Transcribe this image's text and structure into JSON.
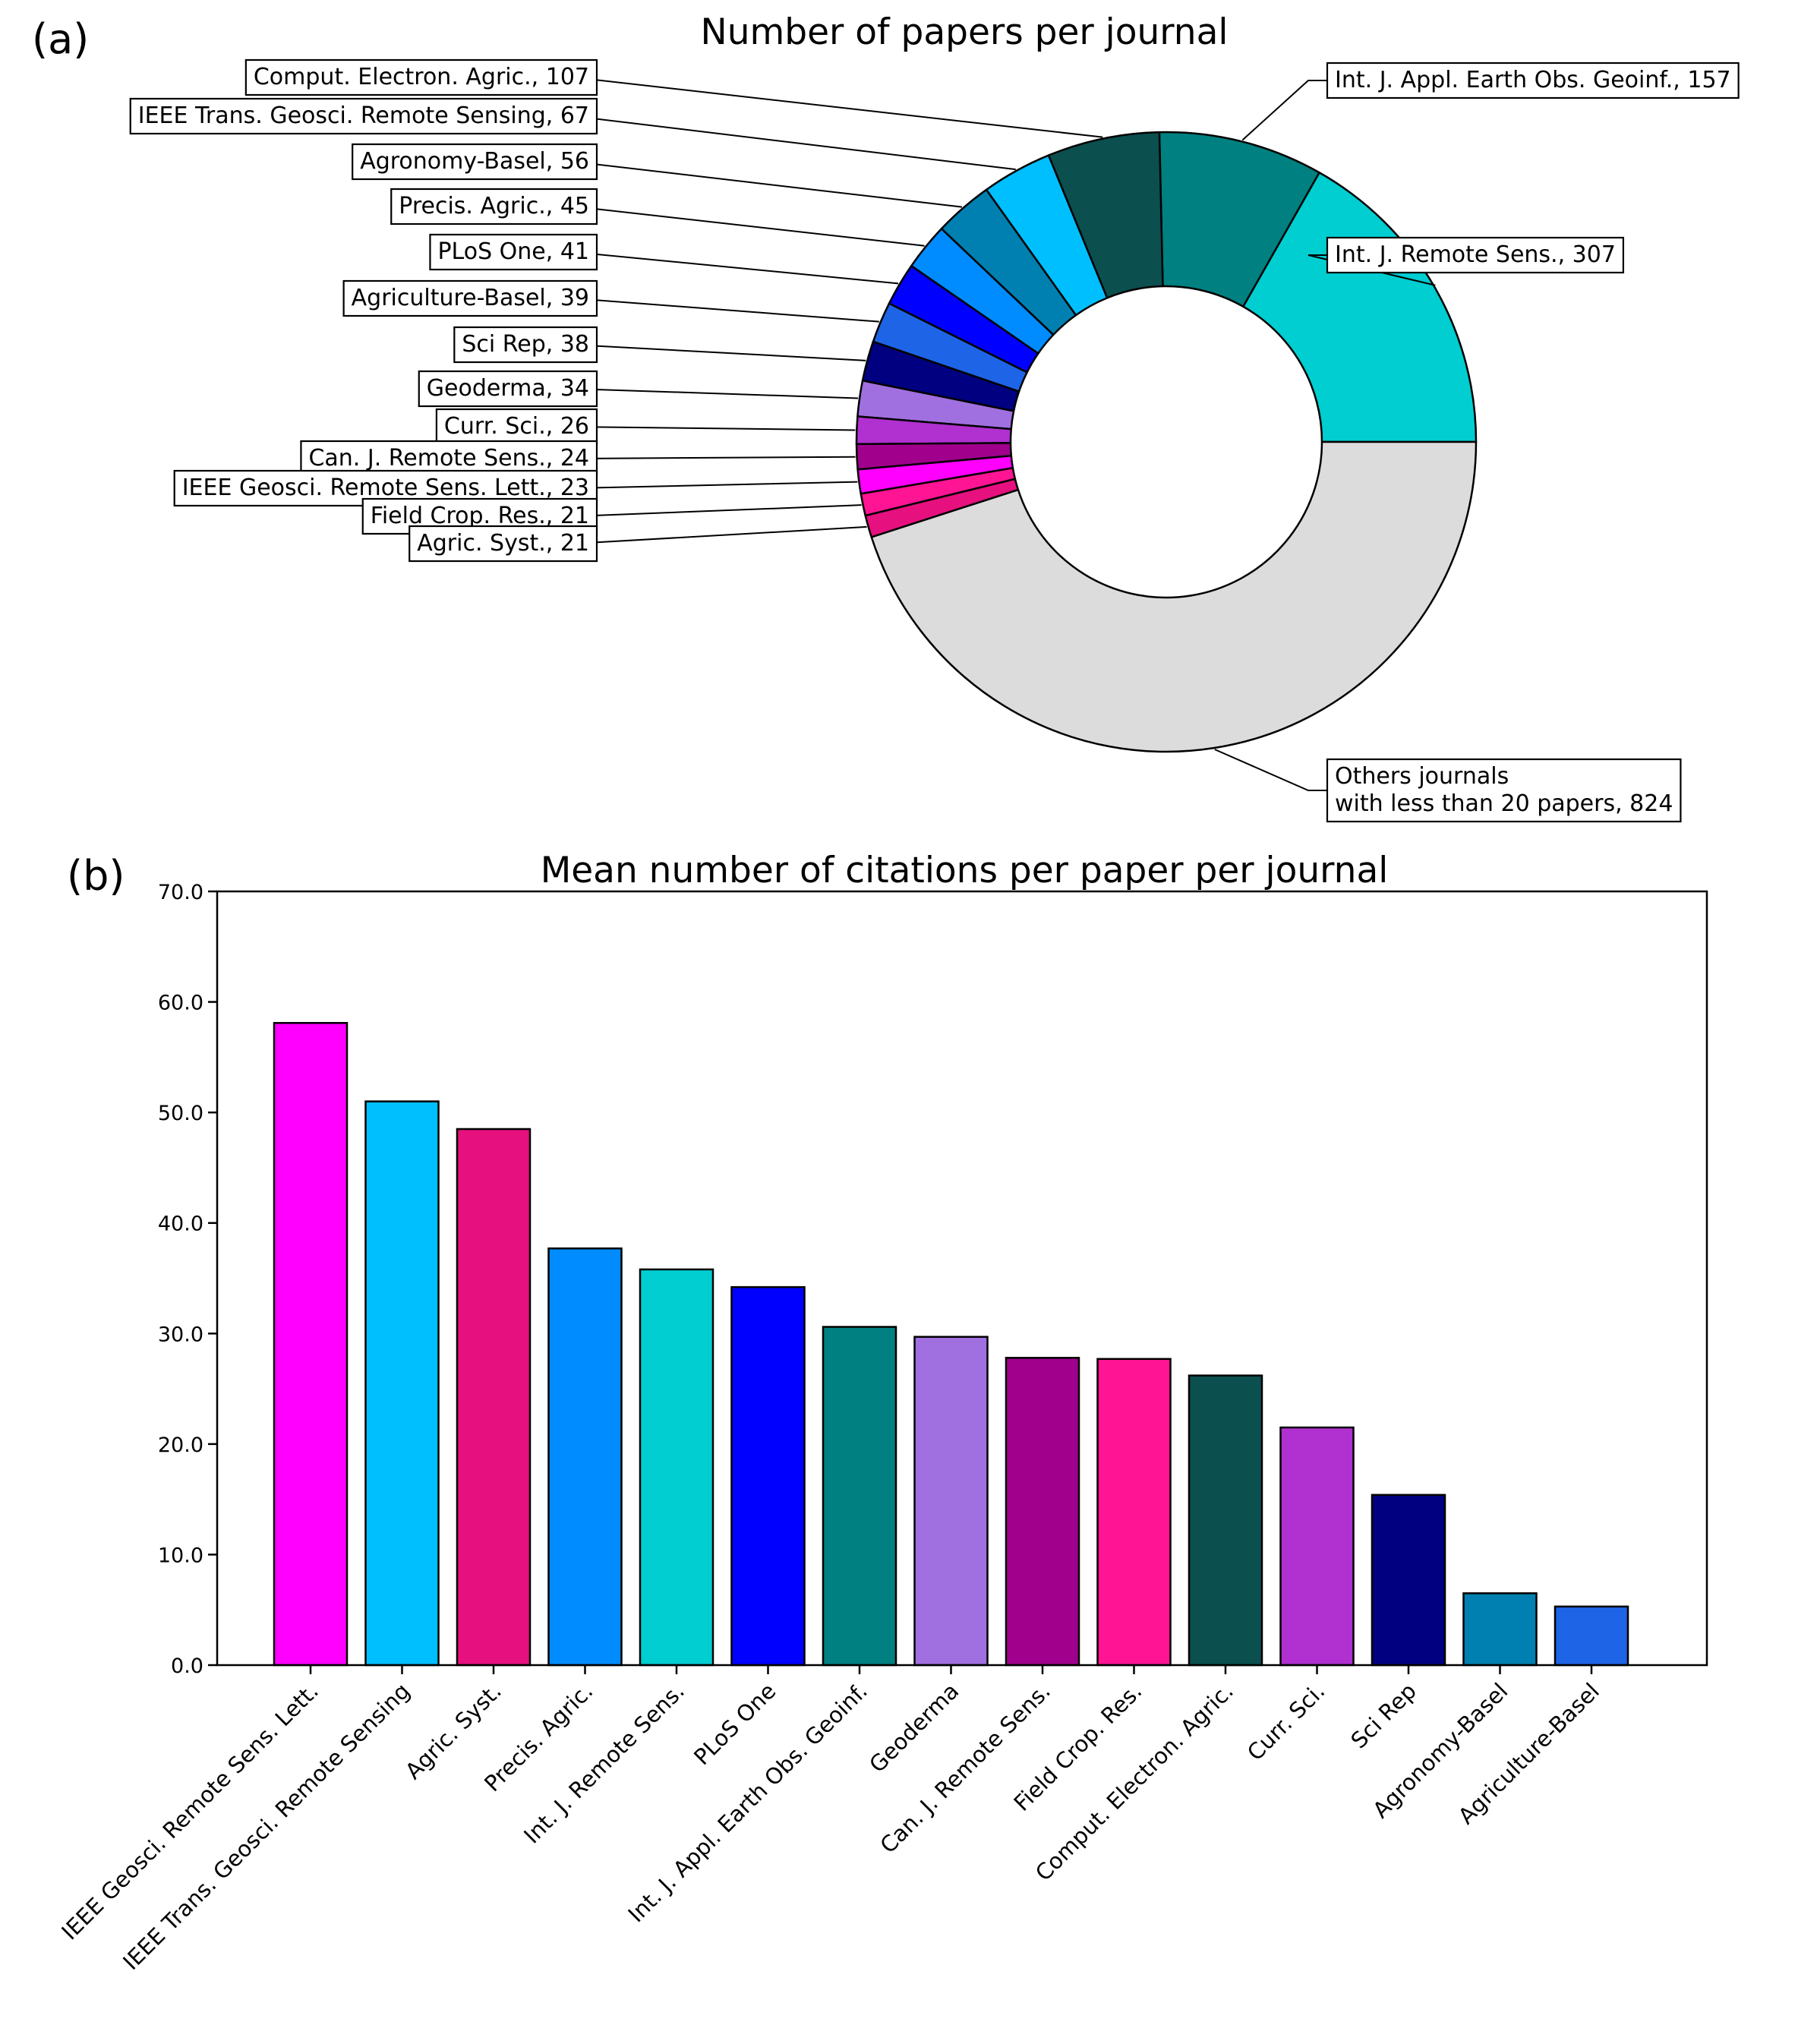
{
  "colors": {
    "bg": "#ffffff",
    "edge": "#000000",
    "others": "#dcdcdc"
  },
  "chart_data": [
    {
      "type": "pie",
      "panel_label": "(a)",
      "title": "Number of papers per journal",
      "donut": true,
      "slices": [
        {
          "name": "Int. J. Remote Sens.",
          "value": 307,
          "label": "Int. J. Remote Sens., 307",
          "color": "#00ced1"
        },
        {
          "name": "Int. J. Appl. Earth Obs. Geoinf.",
          "value": 157,
          "label": "Int. J. Appl. Earth Obs. Geoinf., 157",
          "color": "#008080"
        },
        {
          "name": "Comput. Electron. Agric.",
          "value": 107,
          "label": "Comput. Electron. Agric., 107",
          "color": "#0b4f4f"
        },
        {
          "name": "IEEE Trans. Geosci. Remote Sensing",
          "value": 67,
          "label": "IEEE Trans. Geosci. Remote Sensing, 67",
          "color": "#00bfff"
        },
        {
          "name": "Agronomy-Basel",
          "value": 56,
          "label": "Agronomy-Basel, 56",
          "color": "#0080b0"
        },
        {
          "name": "Precis. Agric.",
          "value": 45,
          "label": "Precis. Agric., 45",
          "color": "#008cff"
        },
        {
          "name": "PLoS One",
          "value": 41,
          "label": "PLoS One, 41",
          "color": "#0000ff"
        },
        {
          "name": "Agriculture-Basel",
          "value": 39,
          "label": "Agriculture-Basel, 39",
          "color": "#1e64e6"
        },
        {
          "name": "Sci Rep",
          "value": 38,
          "label": "Sci Rep, 38",
          "color": "#000080"
        },
        {
          "name": "Geoderma",
          "value": 34,
          "label": "Geoderma, 34",
          "color": "#a070e0"
        },
        {
          "name": "Curr. Sci.",
          "value": 26,
          "label": "Curr. Sci., 26",
          "color": "#b030d0"
        },
        {
          "name": "Can. J. Remote Sens.",
          "value": 24,
          "label": "Can. J. Remote Sens., 24",
          "color": "#a0008c"
        },
        {
          "name": "IEEE Geosci. Remote Sens. Lett.",
          "value": 23,
          "label": "IEEE Geosci. Remote Sens. Lett., 23",
          "color": "#ff00ff"
        },
        {
          "name": "Field Crop. Res.",
          "value": 21,
          "label": "Field Crop. Res., 21",
          "color": "#ff1493"
        },
        {
          "name": "Agric. Syst.",
          "value": 21,
          "label": "Agric. Syst., 21",
          "color": "#e6107f"
        },
        {
          "name": "Others journals with less than 20 papers",
          "value": 824,
          "label_lines": [
            "Others journals",
            "with less than 20 papers, 824"
          ],
          "color": "#dcdcdc"
        }
      ]
    },
    {
      "type": "bar",
      "panel_label": "(b)",
      "title": "Mean number of citations per paper per journal",
      "xlabel": "",
      "ylabel": "",
      "ylim": [
        0,
        70
      ],
      "yticks": [
        "0.0",
        "10.0",
        "20.0",
        "30.0",
        "40.0",
        "50.0",
        "60.0",
        "70.0"
      ],
      "categories": [
        "IEEE Geosci. Remote Sens. Lett.",
        "IEEE Trans. Geosci. Remote Sensing",
        "Agric. Syst.",
        "Precis. Agric.",
        "Int. J. Remote Sens.",
        "PLoS One",
        "Int. J. Appl. Earth Obs. Geoinf.",
        "Geoderma",
        "Can. J. Remote Sens.",
        "Field Crop. Res.",
        "Comput. Electron. Agric.",
        "Curr. Sci.",
        "Sci Rep",
        "Agronomy-Basel",
        "Agriculture-Basel"
      ],
      "values": [
        58.1,
        51.0,
        48.5,
        37.7,
        35.8,
        34.2,
        30.6,
        29.7,
        27.8,
        27.7,
        26.2,
        21.5,
        15.4,
        6.5,
        5.3
      ],
      "colors": [
        "#ff00ff",
        "#00bfff",
        "#e6107f",
        "#008cff",
        "#00ced1",
        "#0000ff",
        "#008080",
        "#a070e0",
        "#a0008c",
        "#ff1493",
        "#0b4f4f",
        "#b030d0",
        "#000080",
        "#0080b0",
        "#1e64e6"
      ]
    }
  ]
}
